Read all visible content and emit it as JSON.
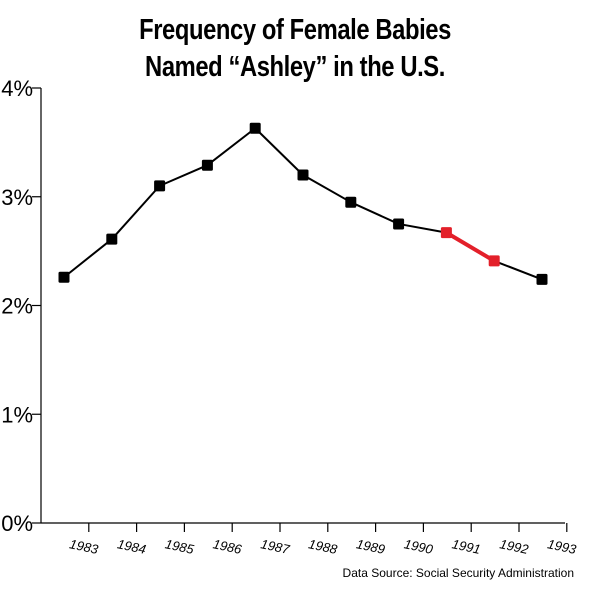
{
  "chart_data": {
    "type": "line",
    "title": [
      "Frequency of Female Babies",
      "Named “Ashley” in the U.S."
    ],
    "xlabel": "",
    "ylabel": "",
    "categories": [
      "1983",
      "1984",
      "1985",
      "1986",
      "1987",
      "1988",
      "1989",
      "1990",
      "1991",
      "1992",
      "1993"
    ],
    "ylim": [
      0,
      4
    ],
    "yticks": [
      0,
      1,
      2,
      3,
      4
    ],
    "ytick_labels": [
      "0%",
      "1%",
      "2%",
      "3%",
      "4%"
    ],
    "grid": false,
    "series": [
      {
        "values": [
          2.26,
          2.61,
          3.1,
          3.29,
          3.63,
          3.2,
          2.95,
          2.75,
          2.67,
          2.41,
          2.24
        ],
        "color": "#000000",
        "highlight": {
          "from_index": 8,
          "to_index": 9,
          "color": "#e3202a"
        }
      }
    ],
    "source": "Data Source: Social Security Administration"
  }
}
